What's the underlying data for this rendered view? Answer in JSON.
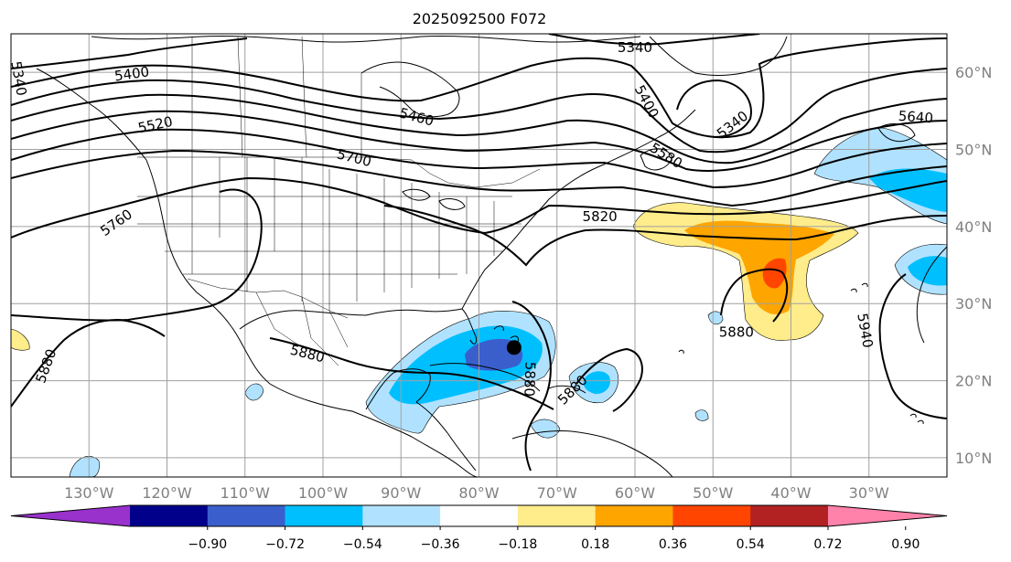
{
  "title": "2025092500 F072",
  "map": {
    "lon_range": [
      -140,
      -20
    ],
    "lat_range": [
      7.5,
      65
    ],
    "lon_ticks": [
      {
        "value": -130,
        "label": "130°W"
      },
      {
        "value": -120,
        "label": "120°W"
      },
      {
        "value": -110,
        "label": "110°W"
      },
      {
        "value": -100,
        "label": "100°W"
      },
      {
        "value": -90,
        "label": "90°W"
      },
      {
        "value": -80,
        "label": "80°W"
      },
      {
        "value": -70,
        "label": "70°W"
      },
      {
        "value": -60,
        "label": "60°W"
      },
      {
        "value": -50,
        "label": "50°W"
      },
      {
        "value": -40,
        "label": "40°W"
      },
      {
        "value": -30,
        "label": "30°W"
      }
    ],
    "lat_ticks": [
      {
        "value": 10,
        "label": "10°N"
      },
      {
        "value": 20,
        "label": "20°N"
      },
      {
        "value": 30,
        "label": "30°N"
      },
      {
        "value": 40,
        "label": "40°N"
      },
      {
        "value": 50,
        "label": "50°N"
      },
      {
        "value": 60,
        "label": "60°N"
      }
    ],
    "contour_labels": [
      {
        "text": "5340",
        "lon": -60,
        "lat": 63.2,
        "rot": 0
      },
      {
        "text": "5400",
        "lon": -124.5,
        "lat": 59.8,
        "rot": -8
      },
      {
        "text": "5400",
        "lon": -58.5,
        "lat": 56.2,
        "rot": 62
      },
      {
        "text": "5340",
        "lon": -47.5,
        "lat": 53.2,
        "rot": -38
      },
      {
        "text": "5340",
        "lon": -139,
        "lat": 59.2,
        "rot": 80
      },
      {
        "text": "5460",
        "lon": -88,
        "lat": 54.2,
        "rot": 15
      },
      {
        "text": "5520",
        "lon": -121.5,
        "lat": 53.2,
        "rot": -12
      },
      {
        "text": "5580",
        "lon": -56,
        "lat": 49.2,
        "rot": 32
      },
      {
        "text": "5640",
        "lon": -24,
        "lat": 54.2,
        "rot": 4
      },
      {
        "text": "5700",
        "lon": -96,
        "lat": 48.9,
        "rot": 14
      },
      {
        "text": "5760",
        "lon": -126.5,
        "lat": 40.5,
        "rot": -35
      },
      {
        "text": "5820",
        "lon": -64.5,
        "lat": 41.3,
        "rot": 0
      },
      {
        "text": "5880",
        "lon": -135.5,
        "lat": 21.9,
        "rot": -70
      },
      {
        "text": "5880",
        "lon": -102,
        "lat": 23.5,
        "rot": 14
      },
      {
        "text": "5880",
        "lon": -73.5,
        "lat": 20.2,
        "rot": 92
      },
      {
        "text": "5880",
        "lon": -68,
        "lat": 18.8,
        "rot": -45
      },
      {
        "text": "5880",
        "lon": -47,
        "lat": 26.3,
        "rot": 0
      },
      {
        "text": "5940",
        "lon": -30.5,
        "lat": 26.5,
        "rot": 80
      }
    ],
    "storm_center": {
      "lon": -75.5,
      "lat": 24.3
    }
  },
  "colorbar": {
    "labels": [
      "−0.90",
      "−0.72",
      "−0.54",
      "−0.36",
      "−0.18",
      "0.18",
      "0.36",
      "0.54",
      "0.72",
      "0.90"
    ],
    "colors": [
      "#9932cc",
      "#00008b",
      "#3a5fcd",
      "#00bfff",
      "#b0e2ff",
      "#ffffff",
      "#ffec8b",
      "#ffa500",
      "#ff4500",
      "#b22222",
      "#ff82ab"
    ]
  }
}
